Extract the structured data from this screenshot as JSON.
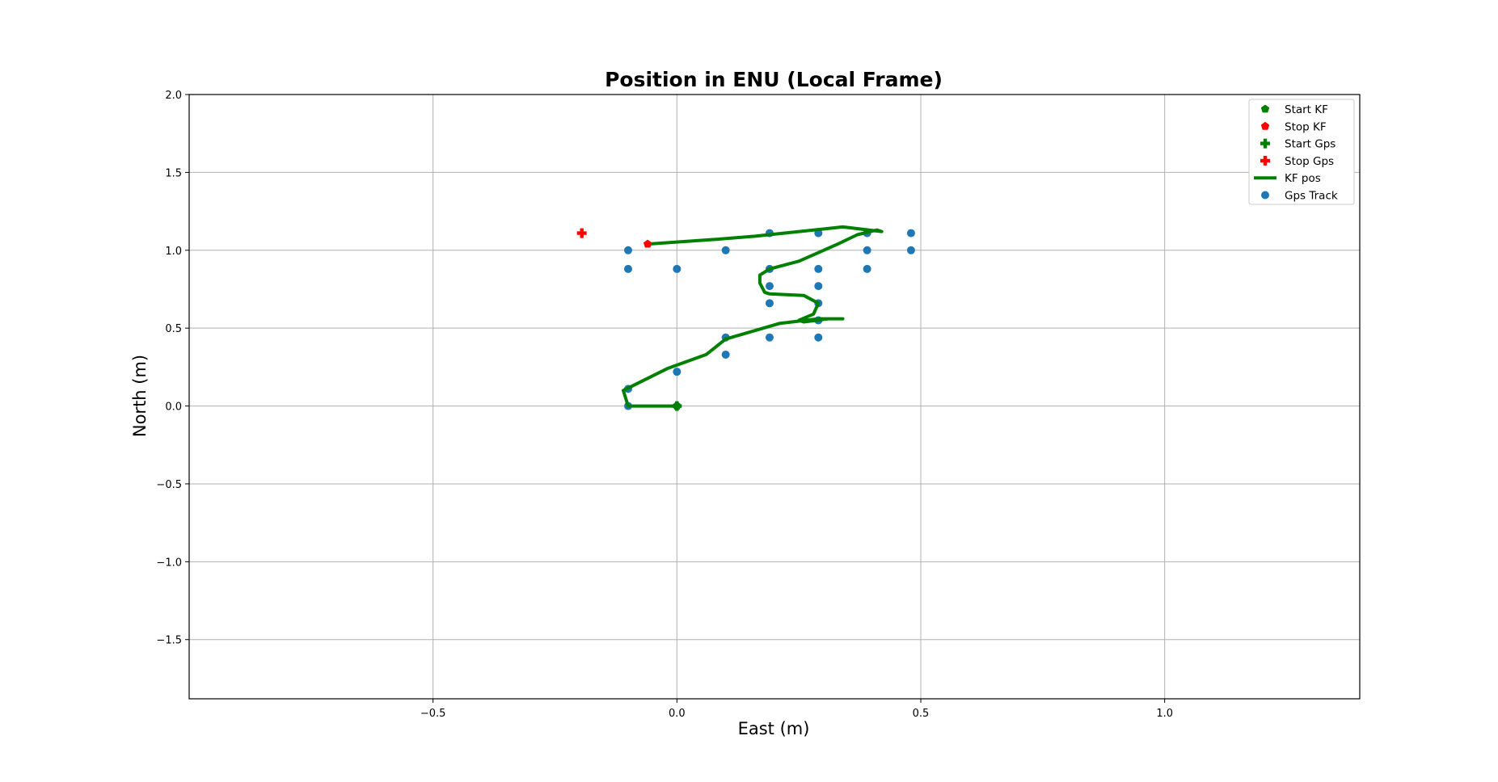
{
  "chart_data": {
    "type": "scatter",
    "title": "Position in ENU (Local Frame)",
    "xlabel": "East (m)",
    "ylabel": "North (m)",
    "xlim": [
      -1.0,
      1.4
    ],
    "ylim": [
      -1.88,
      2.0
    ],
    "x_ticks": [
      -0.5,
      0.0,
      0.5,
      1.0
    ],
    "x_tick_labels": [
      "−0.5",
      "0.0",
      "0.5",
      "1.0"
    ],
    "y_ticks": [
      2.0,
      1.5,
      1.0,
      0.5,
      0.0,
      -0.5,
      -1.0,
      -1.5
    ],
    "y_tick_labels": [
      "2.0",
      "1.5",
      "1.0",
      "0.5",
      "0.0",
      "−0.5",
      "−1.0",
      "−1.5"
    ],
    "grid": true,
    "legend_position": "top-right",
    "legend": [
      {
        "label": "Start KF",
        "marker": "pentagon",
        "color": "#008000"
      },
      {
        "label": "Stop KF",
        "marker": "pentagon",
        "color": "#ff0000"
      },
      {
        "label": "Start Gps",
        "marker": "plus",
        "color": "#008000"
      },
      {
        "label": "Stop Gps",
        "marker": "plus",
        "color": "#ff0000"
      },
      {
        "label": "KF pos",
        "marker": "line",
        "color": "#008000"
      },
      {
        "label": "Gps Track",
        "marker": "circle",
        "color": "#1f77b4"
      }
    ],
    "series": [
      {
        "name": "Start KF",
        "kind": "pentagon",
        "color": "#008000",
        "x": [
          0.0
        ],
        "y": [
          0.0
        ]
      },
      {
        "name": "Stop KF",
        "kind": "pentagon",
        "color": "#ff0000",
        "x": [
          -0.06
        ],
        "y": [
          1.04
        ]
      },
      {
        "name": "Start Gps",
        "kind": "plus",
        "color": "#008000",
        "x": [
          0.0
        ],
        "y": [
          0.0
        ]
      },
      {
        "name": "Stop Gps",
        "kind": "plus",
        "color": "#ff0000",
        "x": [
          -0.195
        ],
        "y": [
          1.11
        ]
      },
      {
        "name": "KF pos",
        "kind": "line",
        "color": "#008000",
        "x": [
          0.0,
          -0.1,
          -0.11,
          -0.02,
          0.06,
          0.1,
          0.21,
          0.29,
          0.34,
          0.31,
          0.26,
          0.25,
          0.28,
          0.29,
          0.26,
          0.19,
          0.18,
          0.17,
          0.17,
          0.19,
          0.25,
          0.33,
          0.37,
          0.41,
          0.42,
          0.34,
          0.16,
          0.08,
          -0.06
        ],
        "y": [
          0.0,
          0.0,
          0.1,
          0.24,
          0.33,
          0.43,
          0.53,
          0.56,
          0.56,
          0.56,
          0.54,
          0.55,
          0.59,
          0.66,
          0.71,
          0.72,
          0.73,
          0.79,
          0.84,
          0.88,
          0.93,
          1.04,
          1.1,
          1.13,
          1.12,
          1.15,
          1.09,
          1.07,
          1.04
        ]
      },
      {
        "name": "Gps Track",
        "kind": "circle",
        "color": "#1f77b4",
        "x": [
          0.0,
          -0.1,
          -0.1,
          0.0,
          0.1,
          0.1,
          0.19,
          0.29,
          0.29,
          0.29,
          0.19,
          0.19,
          0.29,
          0.29,
          0.19,
          0.19,
          0.29,
          0.39,
          0.39,
          0.39,
          0.48,
          0.48,
          0.1,
          0.0,
          -0.1,
          -0.1
        ],
        "y": [
          0.0,
          0.0,
          0.11,
          0.22,
          0.33,
          0.44,
          0.44,
          0.44,
          0.55,
          0.66,
          0.66,
          0.77,
          0.77,
          0.88,
          0.88,
          1.11,
          1.11,
          1.11,
          1.0,
          0.88,
          1.0,
          1.11,
          1.0,
          0.88,
          0.88,
          1.0
        ]
      }
    ]
  }
}
